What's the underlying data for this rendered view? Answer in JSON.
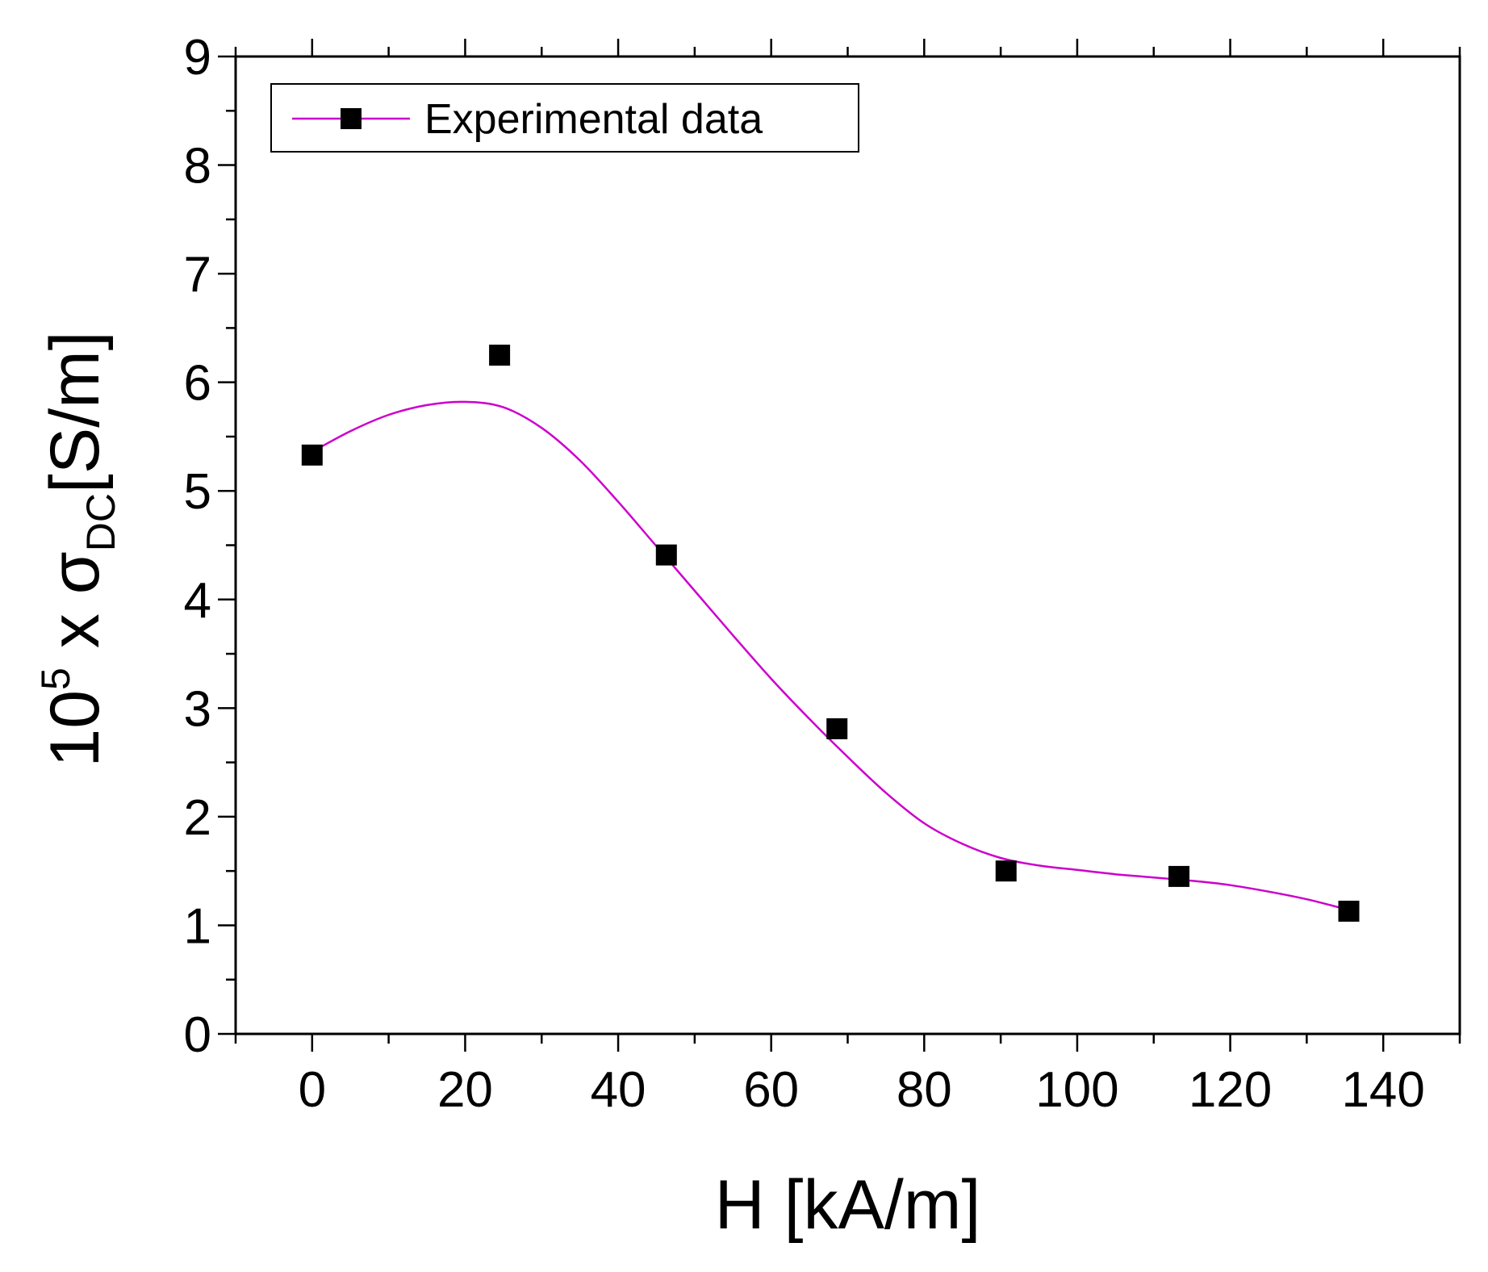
{
  "chart_data": {
    "type": "scatter",
    "xlabel": "H [kA/m]",
    "ylabel": {
      "base": "10",
      "exponent": "5",
      "times": " x ",
      "symbol": "σ",
      "subscript": "DC",
      "unit": "[S/m]"
    },
    "xlim": [
      -10,
      150
    ],
    "ylim": [
      0,
      9
    ],
    "x_ticks": [
      0,
      20,
      40,
      60,
      80,
      100,
      120,
      140
    ],
    "x_tick_labels": [
      "0",
      "20",
      "40",
      "60",
      "80",
      "100",
      "120",
      "140"
    ],
    "y_ticks": [
      0,
      1,
      2,
      3,
      4,
      5,
      6,
      7,
      8,
      9
    ],
    "y_tick_labels": [
      "0",
      "1",
      "2",
      "3",
      "4",
      "5",
      "6",
      "7",
      "8",
      "9"
    ],
    "grid": false,
    "legend": {
      "position": "top-left",
      "entries": [
        "Experimental data"
      ]
    },
    "series": [
      {
        "name": "Experimental data",
        "marker": "square",
        "marker_color": "#000000",
        "line_color": "#cc00cc",
        "points": [
          {
            "x": 0,
            "y": 5.33
          },
          {
            "x": 24.5,
            "y": 6.25
          },
          {
            "x": 46.3,
            "y": 4.41
          },
          {
            "x": 68.6,
            "y": 2.81
          },
          {
            "x": 90.7,
            "y": 1.5
          },
          {
            "x": 113.3,
            "y": 1.45
          },
          {
            "x": 135.5,
            "y": 1.13
          }
        ],
        "fit_curve": [
          {
            "x": 0,
            "y": 5.36
          },
          {
            "x": 5,
            "y": 5.55
          },
          {
            "x": 10,
            "y": 5.7
          },
          {
            "x": 15,
            "y": 5.79
          },
          {
            "x": 20,
            "y": 5.82
          },
          {
            "x": 25,
            "y": 5.77
          },
          {
            "x": 30,
            "y": 5.58
          },
          {
            "x": 35,
            "y": 5.28
          },
          {
            "x": 40,
            "y": 4.9
          },
          {
            "x": 45,
            "y": 4.49
          },
          {
            "x": 50,
            "y": 4.08
          },
          {
            "x": 55,
            "y": 3.67
          },
          {
            "x": 60,
            "y": 3.27
          },
          {
            "x": 65,
            "y": 2.9
          },
          {
            "x": 70,
            "y": 2.55
          },
          {
            "x": 75,
            "y": 2.22
          },
          {
            "x": 80,
            "y": 1.94
          },
          {
            "x": 85,
            "y": 1.75
          },
          {
            "x": 90,
            "y": 1.62
          },
          {
            "x": 95,
            "y": 1.55
          },
          {
            "x": 100,
            "y": 1.51
          },
          {
            "x": 105,
            "y": 1.47
          },
          {
            "x": 110,
            "y": 1.44
          },
          {
            "x": 115,
            "y": 1.41
          },
          {
            "x": 120,
            "y": 1.37
          },
          {
            "x": 125,
            "y": 1.31
          },
          {
            "x": 130,
            "y": 1.24
          },
          {
            "x": 135,
            "y": 1.15
          }
        ]
      }
    ]
  }
}
